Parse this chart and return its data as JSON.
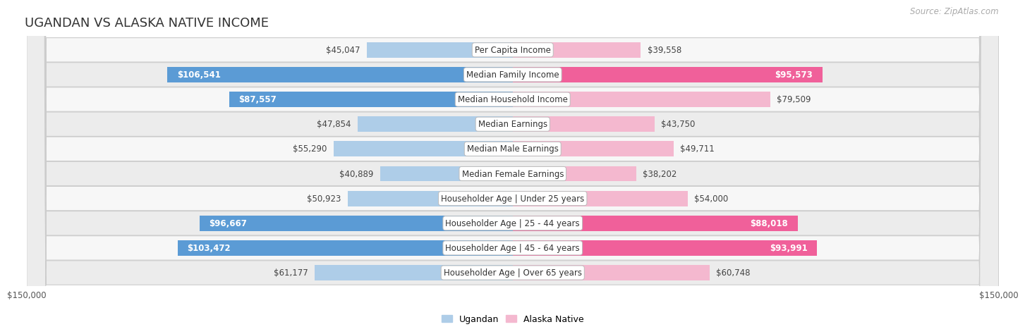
{
  "title": "UGANDAN VS ALASKA NATIVE INCOME",
  "source": "Source: ZipAtlas.com",
  "categories": [
    "Per Capita Income",
    "Median Family Income",
    "Median Household Income",
    "Median Earnings",
    "Median Male Earnings",
    "Median Female Earnings",
    "Householder Age | Under 25 years",
    "Householder Age | 25 - 44 years",
    "Householder Age | 45 - 64 years",
    "Householder Age | Over 65 years"
  ],
  "ugandan_values": [
    45047,
    106541,
    87557,
    47854,
    55290,
    40889,
    50923,
    96667,
    103472,
    61177
  ],
  "alaska_values": [
    39558,
    95573,
    79509,
    43750,
    49711,
    38202,
    54000,
    88018,
    93991,
    60748
  ],
  "ugandan_labels": [
    "$45,047",
    "$106,541",
    "$87,557",
    "$47,854",
    "$55,290",
    "$40,889",
    "$50,923",
    "$96,667",
    "$103,472",
    "$61,177"
  ],
  "alaska_labels": [
    "$39,558",
    "$95,573",
    "$79,509",
    "$43,750",
    "$49,711",
    "$38,202",
    "$54,000",
    "$88,018",
    "$93,991",
    "$60,748"
  ],
  "max_value": 150000,
  "ugandan_color_light": "#aecde8",
  "ugandan_color_bright": "#5b9bd5",
  "alaska_color_light": "#f4b8cf",
  "alaska_color_bright": "#f0609a",
  "ugandan_label_threshold": 80000,
  "alaska_label_threshold": 80000,
  "bar_height": 0.62,
  "row_bg_even": "#f7f7f7",
  "row_bg_odd": "#ececec",
  "title_fontsize": 13,
  "label_fontsize": 8.5,
  "axis_fontsize": 8.5,
  "legend_fontsize": 9,
  "source_fontsize": 8.5
}
